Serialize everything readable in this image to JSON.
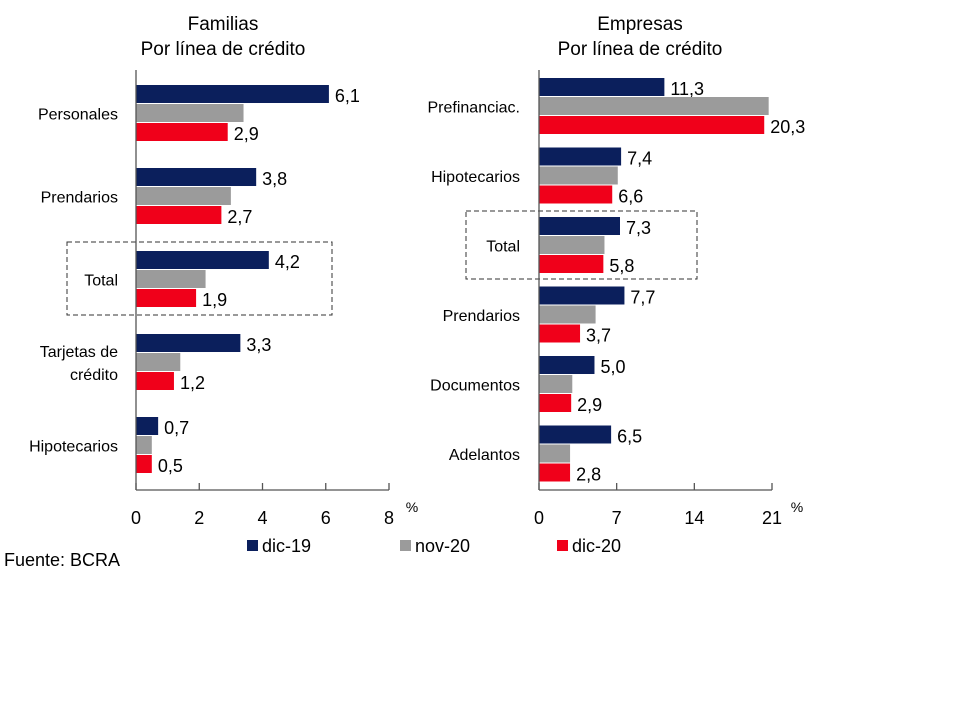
{
  "colors": {
    "dic19": "#0b1f5c",
    "nov20": "#9b9b9b",
    "dic20": "#f0001a",
    "axis": "#555555"
  },
  "legend": [
    {
      "label": "dic-19",
      "color": "#0b1f5c"
    },
    {
      "label": "nov-20",
      "color": "#9b9b9b"
    },
    {
      "label": "dic-20",
      "color": "#f0001a"
    }
  ],
  "source": "Fuente: BCRA",
  "chart_data": [
    {
      "type": "bar",
      "orientation": "horizontal",
      "title": "Familias",
      "subtitle": "Por línea de crédito",
      "xlabel": "%",
      "xlim": [
        0,
        8
      ],
      "xticks": [
        "0",
        "2",
        "4",
        "6",
        "8"
      ],
      "categories": [
        "Personales",
        "Prendarios",
        "Total",
        "Tarjetas de crédito",
        "Hipotecarios"
      ],
      "category_lines": [
        [
          "Personales"
        ],
        [
          "Prendarios"
        ],
        [
          "Total"
        ],
        [
          "Tarjetas de",
          "crédito"
        ],
        [
          "Hipotecarios"
        ]
      ],
      "highlight": "Total",
      "series": [
        {
          "name": "dic-19",
          "values": [
            6.1,
            3.8,
            4.2,
            3.3,
            0.7
          ],
          "labels": [
            "6,1",
            "3,8",
            "4,2",
            "3,3",
            "0,7"
          ]
        },
        {
          "name": "nov-20",
          "values": [
            3.4,
            3.0,
            2.2,
            1.4,
            0.5
          ],
          "labels": null
        },
        {
          "name": "dic-20",
          "values": [
            2.9,
            2.7,
            1.9,
            1.2,
            0.5
          ],
          "labels": [
            "2,9",
            "2,7",
            "1,9",
            "1,2",
            "0,5"
          ]
        }
      ]
    },
    {
      "type": "bar",
      "orientation": "horizontal",
      "title": "Empresas",
      "subtitle": "Por línea de crédito",
      "xlabel": "%",
      "xlim": [
        0,
        21
      ],
      "xticks": [
        "0",
        "7",
        "14",
        "21"
      ],
      "categories": [
        "Prefinanciac.",
        "Hipotecarios",
        "Total",
        "Prendarios",
        "Documentos",
        "Adelantos"
      ],
      "category_lines": [
        [
          "Prefinanciac."
        ],
        [
          "Hipotecarios"
        ],
        [
          "Total"
        ],
        [
          "Prendarios"
        ],
        [
          "Documentos"
        ],
        [
          "Adelantos"
        ]
      ],
      "highlight": "Total",
      "series": [
        {
          "name": "dic-19",
          "values": [
            11.3,
            7.4,
            7.3,
            7.7,
            5.0,
            6.5
          ],
          "labels": [
            "11,3",
            "7,4",
            "7,3",
            "7,7",
            "5,0",
            "6,5"
          ]
        },
        {
          "name": "nov-20",
          "values": [
            20.7,
            7.1,
            5.9,
            5.1,
            3.0,
            2.8
          ],
          "labels": null
        },
        {
          "name": "dic-20",
          "values": [
            20.3,
            6.6,
            5.8,
            3.7,
            2.9,
            2.8
          ],
          "labels": [
            "20,3",
            "6,6",
            "5,8",
            "3,7",
            "2,9",
            "2,8"
          ]
        }
      ]
    }
  ]
}
